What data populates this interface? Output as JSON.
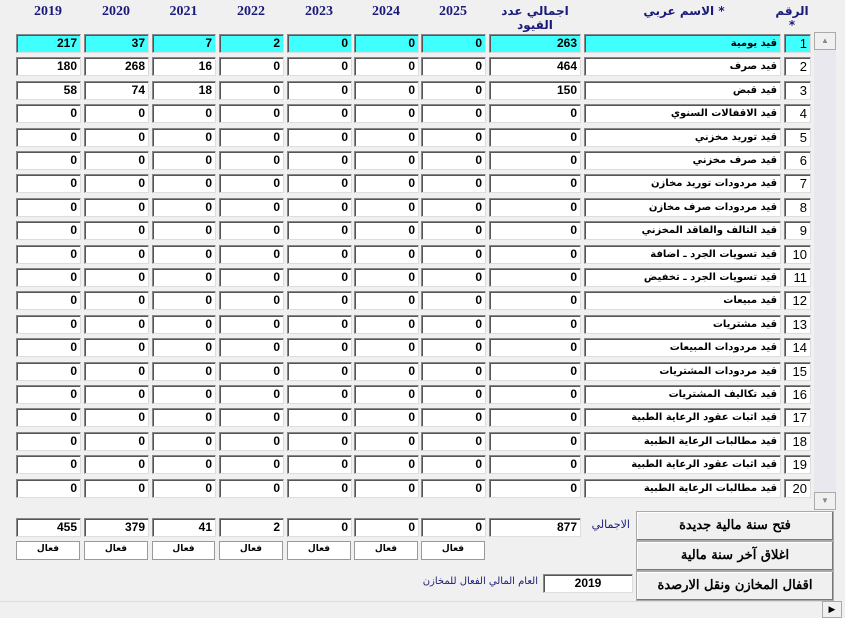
{
  "headers": {
    "num": "الرقم *",
    "name": "الاسم عربي *",
    "total": "اجمالي عدد القيود",
    "years": [
      "2025",
      "2024",
      "2023",
      "2022",
      "2021",
      "2020",
      "2019"
    ]
  },
  "rows": [
    {
      "num": "1",
      "name": "قيد يومية",
      "total": "263",
      "years": [
        "0",
        "0",
        "0",
        "2",
        "7",
        "37",
        "217"
      ]
    },
    {
      "num": "2",
      "name": "قيد صرف",
      "total": "464",
      "years": [
        "0",
        "0",
        "0",
        "0",
        "16",
        "268",
        "180"
      ]
    },
    {
      "num": "3",
      "name": "قيد قبض",
      "total": "150",
      "years": [
        "0",
        "0",
        "0",
        "0",
        "18",
        "74",
        "58"
      ]
    },
    {
      "num": "4",
      "name": "قيد الاقفالات السنوي",
      "total": "0",
      "years": [
        "0",
        "0",
        "0",
        "0",
        "0",
        "0",
        "0"
      ]
    },
    {
      "num": "5",
      "name": "قيد توريد مخزني",
      "total": "0",
      "years": [
        "0",
        "0",
        "0",
        "0",
        "0",
        "0",
        "0"
      ]
    },
    {
      "num": "6",
      "name": "قيد صرف مخزني",
      "total": "0",
      "years": [
        "0",
        "0",
        "0",
        "0",
        "0",
        "0",
        "0"
      ]
    },
    {
      "num": "7",
      "name": "قيد مردودات توريد مخازن",
      "total": "0",
      "years": [
        "0",
        "0",
        "0",
        "0",
        "0",
        "0",
        "0"
      ]
    },
    {
      "num": "8",
      "name": "قيد مردودات صرف مخازن",
      "total": "0",
      "years": [
        "0",
        "0",
        "0",
        "0",
        "0",
        "0",
        "0"
      ]
    },
    {
      "num": "9",
      "name": "قيد التالف والفاقد المخزني",
      "total": "0",
      "years": [
        "0",
        "0",
        "0",
        "0",
        "0",
        "0",
        "0"
      ]
    },
    {
      "num": "10",
      "name": "قيد تسويات الجرد ـ اضافة",
      "total": "0",
      "years": [
        "0",
        "0",
        "0",
        "0",
        "0",
        "0",
        "0"
      ]
    },
    {
      "num": "11",
      "name": "قيد تسويات الجرد ـ تخفيض",
      "total": "0",
      "years": [
        "0",
        "0",
        "0",
        "0",
        "0",
        "0",
        "0"
      ]
    },
    {
      "num": "12",
      "name": "قيد مبيعات",
      "total": "0",
      "years": [
        "0",
        "0",
        "0",
        "0",
        "0",
        "0",
        "0"
      ]
    },
    {
      "num": "13",
      "name": "قيد مشتريات",
      "total": "0",
      "years": [
        "0",
        "0",
        "0",
        "0",
        "0",
        "0",
        "0"
      ]
    },
    {
      "num": "14",
      "name": "قيد مردودات المبيعات",
      "total": "0",
      "years": [
        "0",
        "0",
        "0",
        "0",
        "0",
        "0",
        "0"
      ]
    },
    {
      "num": "15",
      "name": "قيد مردودات المشتريات",
      "total": "0",
      "years": [
        "0",
        "0",
        "0",
        "0",
        "0",
        "0",
        "0"
      ]
    },
    {
      "num": "16",
      "name": "قيد تكاليف المشتريات",
      "total": "0",
      "years": [
        "0",
        "0",
        "0",
        "0",
        "0",
        "0",
        "0"
      ]
    },
    {
      "num": "17",
      "name": "قيد اثبات عقود الرعاية الطبية",
      "total": "0",
      "years": [
        "0",
        "0",
        "0",
        "0",
        "0",
        "0",
        "0"
      ]
    },
    {
      "num": "18",
      "name": "قيد مطالبات الرعاية الطبية",
      "total": "0",
      "years": [
        "0",
        "0",
        "0",
        "0",
        "0",
        "0",
        "0"
      ]
    },
    {
      "num": "19",
      "name": "قيد اثبات عقود الرعاية الطبية",
      "total": "0",
      "years": [
        "0",
        "0",
        "0",
        "0",
        "0",
        "0",
        "0"
      ]
    },
    {
      "num": "20",
      "name": "قيد مطالبات الرعاية الطبية",
      "total": "0",
      "years": [
        "0",
        "0",
        "0",
        "0",
        "0",
        "0",
        "0"
      ]
    }
  ],
  "totals": {
    "label": "الاجمالي",
    "total": "877",
    "years": [
      "0",
      "0",
      "0",
      "2",
      "41",
      "379",
      "455"
    ]
  },
  "status": [
    "فعال",
    "فعال",
    "فعال",
    "فعال",
    "فعال",
    "فعال",
    "فعال"
  ],
  "buttons": {
    "open_year": "فتح سنة مالية جديدة",
    "close_year": "اغلاق آخر سنة مالية",
    "close_stores": "اقفال المخازن ونقل الارصدة"
  },
  "active_year": {
    "label": "العام المالي الفعال للمخازن",
    "value": "2019"
  },
  "selected_color": "#40ffff"
}
